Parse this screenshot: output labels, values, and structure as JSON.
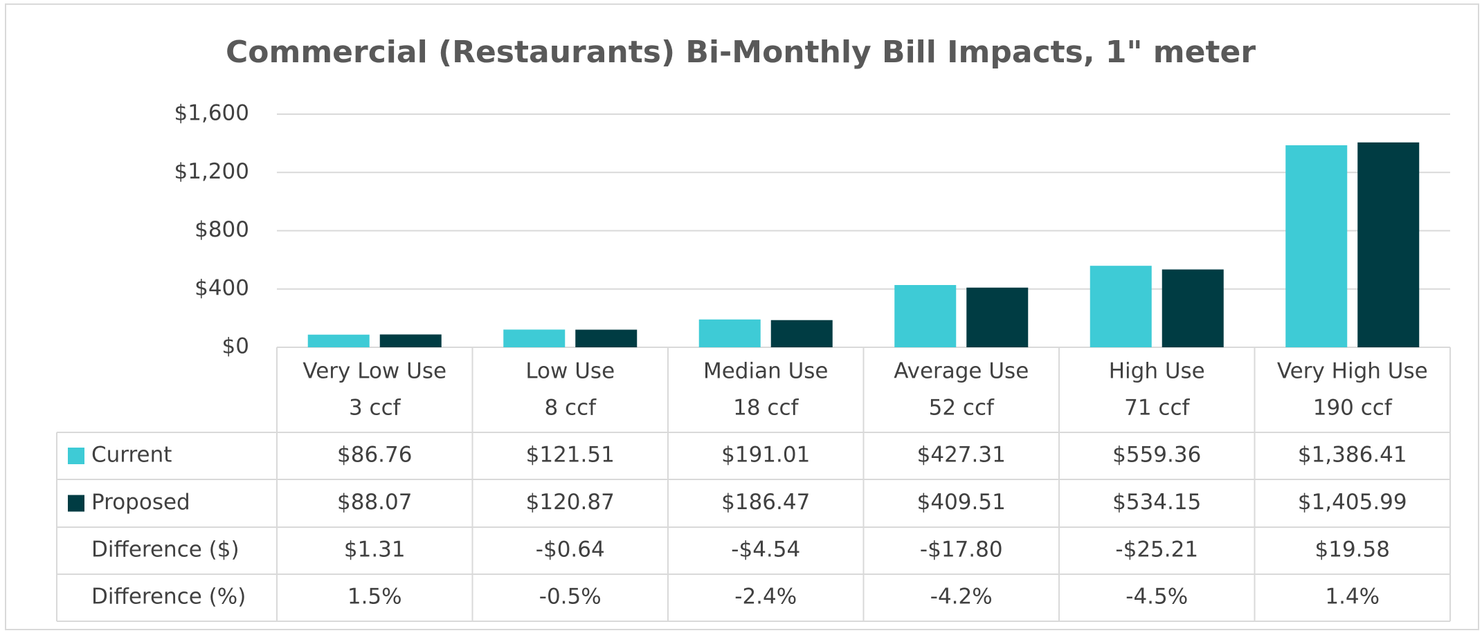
{
  "chart_data": {
    "type": "bar",
    "title": "Commercial (Restaurants) Bi-Monthly Bill Impacts, 1\" meter",
    "categories": [
      "Very Low Use",
      "Low Use",
      "Median Use",
      "Average Use",
      "High Use",
      "Very High Use"
    ],
    "category_sublabels": [
      "3 ccf",
      "8 ccf",
      "18 ccf",
      "52 ccf",
      "71 ccf",
      "190 ccf"
    ],
    "series": [
      {
        "name": "Current",
        "color": "#3ecbd6",
        "values": [
          86.76,
          121.51,
          191.01,
          427.31,
          559.36,
          1386.41
        ],
        "value_labels": [
          "$86.76",
          "$121.51",
          "$191.01",
          "$427.31",
          "$559.36",
          "$1,386.41"
        ]
      },
      {
        "name": "Proposed",
        "color": "#003c43",
        "values": [
          88.07,
          120.87,
          186.47,
          409.51,
          534.15,
          1405.99
        ],
        "value_labels": [
          "$88.07",
          "$120.87",
          "$186.47",
          "$409.51",
          "$534.15",
          "$1,405.99"
        ]
      }
    ],
    "table_rows": [
      {
        "name": "Difference ($)",
        "cells": [
          "$1.31",
          "-$0.64",
          "-$4.54",
          "-$17.80",
          "-$25.21",
          "$19.58"
        ]
      },
      {
        "name": "Difference (%)",
        "cells": [
          "1.5%",
          "-0.5%",
          "-2.4%",
          "-4.2%",
          "-4.5%",
          "1.4%"
        ]
      }
    ],
    "ylim": [
      0,
      1600
    ],
    "yticks": [
      {
        "value": 0,
        "label": "$0"
      },
      {
        "value": 400,
        "label": "$400"
      },
      {
        "value": 800,
        "label": "$800"
      },
      {
        "value": 1200,
        "label": "$1,200"
      },
      {
        "value": 1600,
        "label": "$1,600"
      }
    ],
    "grid": true
  }
}
